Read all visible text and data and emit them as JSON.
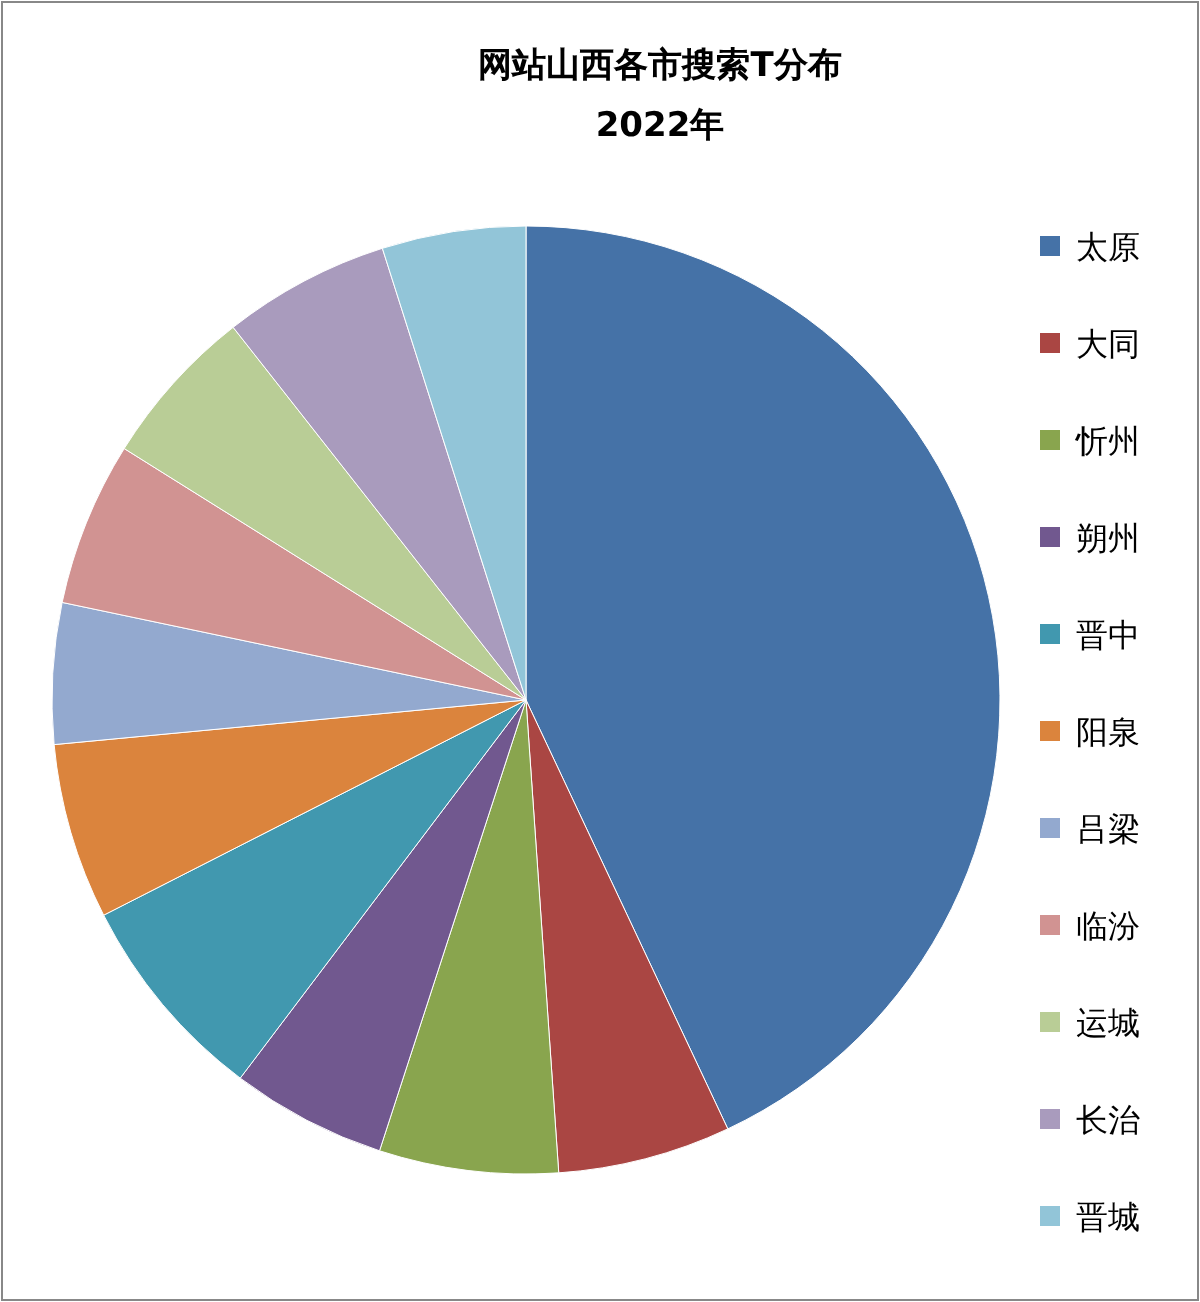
{
  "chart_data": {
    "type": "pie",
    "title": "网站山西各市搜索T分布",
    "subtitle": "2022年",
    "categories": [
      "太原",
      "大同",
      "忻州",
      "朔州",
      "晋中",
      "阳泉",
      "吕梁",
      "临汾",
      "运城",
      "长治",
      "晋城"
    ],
    "values": [
      43,
      5.9,
      6.1,
      5.3,
      7.2,
      6,
      4.8,
      5.6,
      5.5,
      5.7,
      4.9
    ],
    "colors": [
      "#4572a7",
      "#aa4643",
      "#89a54e",
      "#71588f",
      "#4198af",
      "#db843d",
      "#93a9cf",
      "#d19392",
      "#b9cd96",
      "#a99bbd",
      "#92c5d8"
    ],
    "legend": "right"
  }
}
